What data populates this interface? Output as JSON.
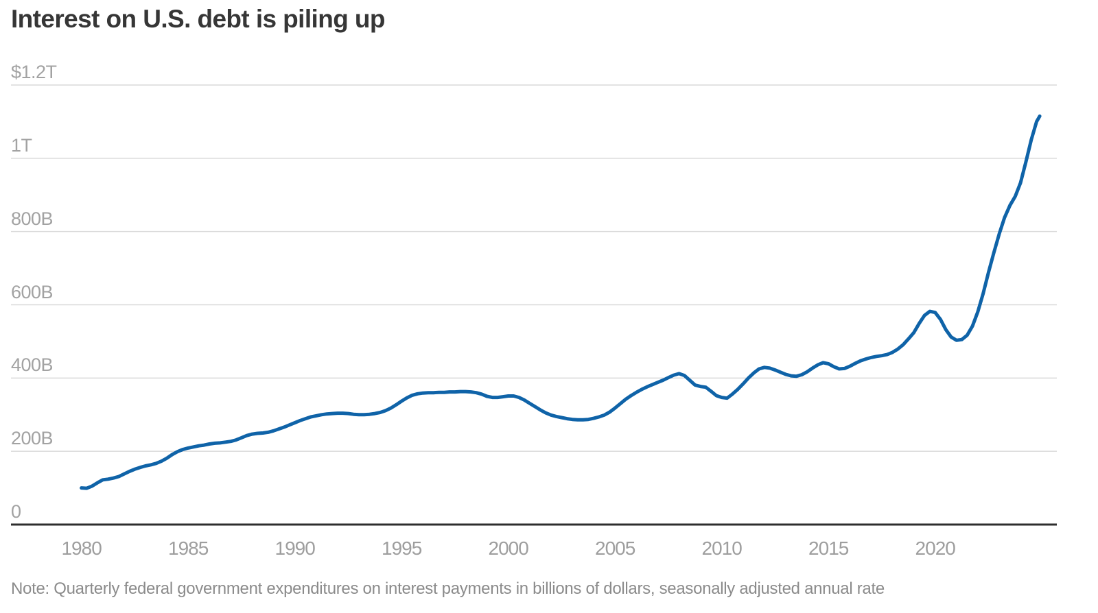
{
  "title": "Interest on U.S. debt is piling up",
  "note": "Note: Quarterly federal government expenditures on interest payments in billions of dollars, seasonally adjusted annual rate",
  "colors": {
    "line": "#0f63a8",
    "grid": "#d9d9d9",
    "axis": "#2e2e2e",
    "title_text": "#363636",
    "tick_text": "#a2a2a2",
    "note_text": "#8b8b8b",
    "background": "#ffffff"
  },
  "chart_data": {
    "type": "line",
    "title": "Interest on U.S. debt is piling up",
    "xlabel": "",
    "ylabel": "",
    "xlim": [
      1976.7,
      2025.7
    ],
    "ylim": [
      0,
      1200
    ],
    "grid": "horizontal",
    "legend": "none",
    "y_ticks": [
      {
        "value": 1200,
        "label": "$1.2T"
      },
      {
        "value": 1000,
        "label": "1T"
      },
      {
        "value": 800,
        "label": "800B"
      },
      {
        "value": 600,
        "label": "600B"
      },
      {
        "value": 400,
        "label": "400B"
      },
      {
        "value": 200,
        "label": "200B"
      },
      {
        "value": 0,
        "label": "0"
      }
    ],
    "x_ticks": [
      {
        "value": 1980,
        "label": "1980"
      },
      {
        "value": 1985,
        "label": "1985"
      },
      {
        "value": 1990,
        "label": "1990"
      },
      {
        "value": 1995,
        "label": "1995"
      },
      {
        "value": 2000,
        "label": "2000"
      },
      {
        "value": 2005,
        "label": "2005"
      },
      {
        "value": 2010,
        "label": "2010"
      },
      {
        "value": 2015,
        "label": "2015"
      },
      {
        "value": 2020,
        "label": "2020"
      }
    ],
    "series": [
      {
        "name": "Federal interest payments (billions, SAAR)",
        "color": "#0f63a8",
        "points": [
          [
            1980.0,
            100
          ],
          [
            1980.25,
            99
          ],
          [
            1980.5,
            105
          ],
          [
            1980.75,
            114
          ],
          [
            1981.0,
            122
          ],
          [
            1981.25,
            124
          ],
          [
            1981.5,
            127
          ],
          [
            1981.75,
            131
          ],
          [
            1982.0,
            138
          ],
          [
            1982.25,
            145
          ],
          [
            1982.5,
            151
          ],
          [
            1982.75,
            156
          ],
          [
            1983.0,
            160
          ],
          [
            1983.25,
            163
          ],
          [
            1983.5,
            167
          ],
          [
            1983.75,
            173
          ],
          [
            1984.0,
            181
          ],
          [
            1984.25,
            191
          ],
          [
            1984.5,
            199
          ],
          [
            1984.75,
            205
          ],
          [
            1985.0,
            209
          ],
          [
            1985.25,
            212
          ],
          [
            1985.5,
            215
          ],
          [
            1985.75,
            217
          ],
          [
            1986.0,
            220
          ],
          [
            1986.25,
            222
          ],
          [
            1986.5,
            223
          ],
          [
            1986.75,
            225
          ],
          [
            1987.0,
            227
          ],
          [
            1987.25,
            231
          ],
          [
            1987.5,
            237
          ],
          [
            1987.75,
            243
          ],
          [
            1988.0,
            247
          ],
          [
            1988.25,
            249
          ],
          [
            1988.5,
            250
          ],
          [
            1988.75,
            252
          ],
          [
            1989.0,
            256
          ],
          [
            1989.25,
            261
          ],
          [
            1989.5,
            266
          ],
          [
            1989.75,
            272
          ],
          [
            1990.0,
            278
          ],
          [
            1990.25,
            284
          ],
          [
            1990.5,
            289
          ],
          [
            1990.75,
            294
          ],
          [
            1991.0,
            297
          ],
          [
            1991.25,
            300
          ],
          [
            1991.5,
            302
          ],
          [
            1991.75,
            303
          ],
          [
            1992.0,
            304
          ],
          [
            1992.25,
            304
          ],
          [
            1992.5,
            303
          ],
          [
            1992.75,
            301
          ],
          [
            1993.0,
            300
          ],
          [
            1993.25,
            300
          ],
          [
            1993.5,
            301
          ],
          [
            1993.75,
            303
          ],
          [
            1994.0,
            306
          ],
          [
            1994.25,
            311
          ],
          [
            1994.5,
            318
          ],
          [
            1994.75,
            327
          ],
          [
            1995.0,
            337
          ],
          [
            1995.25,
            346
          ],
          [
            1995.5,
            353
          ],
          [
            1995.75,
            357
          ],
          [
            1996.0,
            359
          ],
          [
            1996.25,
            360
          ],
          [
            1996.5,
            360
          ],
          [
            1996.75,
            361
          ],
          [
            1997.0,
            361
          ],
          [
            1997.25,
            362
          ],
          [
            1997.5,
            362
          ],
          [
            1997.75,
            363
          ],
          [
            1998.0,
            363
          ],
          [
            1998.25,
            362
          ],
          [
            1998.5,
            360
          ],
          [
            1998.75,
            356
          ],
          [
            1999.0,
            350
          ],
          [
            1999.25,
            347
          ],
          [
            1999.5,
            347
          ],
          [
            1999.75,
            349
          ],
          [
            2000.0,
            351
          ],
          [
            2000.25,
            351
          ],
          [
            2000.5,
            347
          ],
          [
            2000.75,
            340
          ],
          [
            2001.0,
            331
          ],
          [
            2001.25,
            322
          ],
          [
            2001.5,
            313
          ],
          [
            2001.75,
            305
          ],
          [
            2002.0,
            299
          ],
          [
            2002.25,
            295
          ],
          [
            2002.5,
            292
          ],
          [
            2002.75,
            289
          ],
          [
            2003.0,
            287
          ],
          [
            2003.25,
            286
          ],
          [
            2003.5,
            286
          ],
          [
            2003.75,
            287
          ],
          [
            2004.0,
            290
          ],
          [
            2004.25,
            294
          ],
          [
            2004.5,
            299
          ],
          [
            2004.75,
            307
          ],
          [
            2005.0,
            318
          ],
          [
            2005.25,
            330
          ],
          [
            2005.5,
            342
          ],
          [
            2005.75,
            352
          ],
          [
            2006.0,
            361
          ],
          [
            2006.25,
            369
          ],
          [
            2006.5,
            376
          ],
          [
            2006.75,
            382
          ],
          [
            2007.0,
            388
          ],
          [
            2007.25,
            394
          ],
          [
            2007.5,
            401
          ],
          [
            2007.75,
            408
          ],
          [
            2008.0,
            412
          ],
          [
            2008.25,
            407
          ],
          [
            2008.5,
            394
          ],
          [
            2008.75,
            381
          ],
          [
            2009.0,
            377
          ],
          [
            2009.25,
            375
          ],
          [
            2009.5,
            364
          ],
          [
            2009.75,
            352
          ],
          [
            2010.0,
            347
          ],
          [
            2010.25,
            345
          ],
          [
            2010.5,
            356
          ],
          [
            2010.75,
            369
          ],
          [
            2011.0,
            384
          ],
          [
            2011.25,
            400
          ],
          [
            2011.5,
            414
          ],
          [
            2011.75,
            425
          ],
          [
            2012.0,
            429
          ],
          [
            2012.25,
            427
          ],
          [
            2012.5,
            422
          ],
          [
            2012.75,
            416
          ],
          [
            2013.0,
            410
          ],
          [
            2013.25,
            406
          ],
          [
            2013.5,
            405
          ],
          [
            2013.75,
            409
          ],
          [
            2014.0,
            417
          ],
          [
            2014.25,
            427
          ],
          [
            2014.5,
            436
          ],
          [
            2014.75,
            442
          ],
          [
            2015.0,
            439
          ],
          [
            2015.25,
            431
          ],
          [
            2015.5,
            425
          ],
          [
            2015.75,
            426
          ],
          [
            2016.0,
            432
          ],
          [
            2016.25,
            440
          ],
          [
            2016.5,
            447
          ],
          [
            2016.75,
            452
          ],
          [
            2017.0,
            456
          ],
          [
            2017.25,
            459
          ],
          [
            2017.5,
            461
          ],
          [
            2017.75,
            464
          ],
          [
            2018.0,
            470
          ],
          [
            2018.25,
            479
          ],
          [
            2018.5,
            491
          ],
          [
            2018.75,
            507
          ],
          [
            2019.0,
            524
          ],
          [
            2019.25,
            549
          ],
          [
            2019.5,
            571
          ],
          [
            2019.75,
            582
          ],
          [
            2020.0,
            579
          ],
          [
            2020.25,
            560
          ],
          [
            2020.5,
            532
          ],
          [
            2020.75,
            512
          ],
          [
            2021.0,
            503
          ],
          [
            2021.25,
            505
          ],
          [
            2021.5,
            517
          ],
          [
            2021.75,
            542
          ],
          [
            2022.0,
            581
          ],
          [
            2022.25,
            631
          ],
          [
            2022.5,
            689
          ],
          [
            2022.75,
            742
          ],
          [
            2023.0,
            793
          ],
          [
            2023.25,
            838
          ],
          [
            2023.5,
            871
          ],
          [
            2023.75,
            896
          ],
          [
            2024.0,
            933
          ],
          [
            2024.25,
            990
          ],
          [
            2024.5,
            1050
          ],
          [
            2024.75,
            1100
          ],
          [
            2024.9,
            1115
          ]
        ]
      }
    ]
  }
}
